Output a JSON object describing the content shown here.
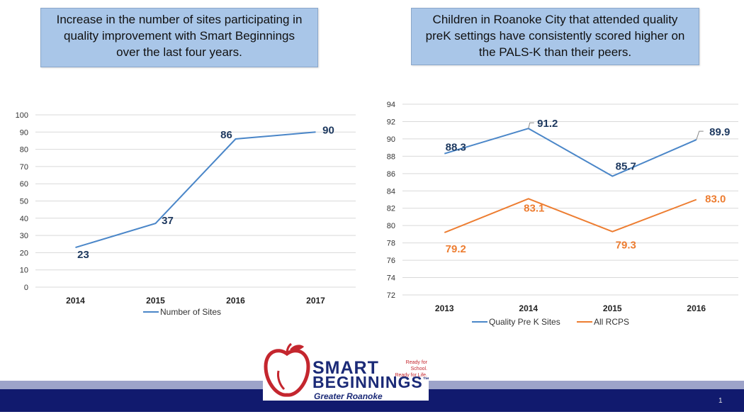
{
  "callouts": {
    "left": [
      "Increase in the number of sites participating in",
      "quality improvement with Smart Beginnings",
      "over the last four years."
    ],
    "right": [
      "Children in Roanoke City that attended quality",
      "preK settings have consistently scored higher on",
      "the PALS-K than their peers."
    ]
  },
  "chart_data": [
    {
      "type": "line",
      "title": "",
      "categories": [
        "2014",
        "2015",
        "2016",
        "2017"
      ],
      "series": [
        {
          "name": "Number of Sites",
          "values": [
            23,
            37,
            86,
            90
          ],
          "labels": [
            "23",
            "37",
            "86",
            "90"
          ],
          "color": "#4a86c8",
          "label_color": "#1f3a60"
        }
      ],
      "ylim": [
        0,
        100
      ],
      "yticks": [
        0,
        10,
        20,
        30,
        40,
        50,
        60,
        70,
        80,
        90,
        100
      ],
      "ytick_labels": [
        "0",
        "10",
        "20",
        "30",
        "40",
        "50",
        "60",
        "70",
        "80",
        "90",
        "100"
      ],
      "xlabel": "",
      "ylabel": "",
      "legend": "bottom"
    },
    {
      "type": "line",
      "title": "",
      "categories": [
        "2013",
        "2014",
        "2015",
        "2016"
      ],
      "series": [
        {
          "name": "Quality Pre K Sites",
          "values": [
            88.3,
            91.2,
            85.7,
            89.9
          ],
          "labels": [
            "88.3",
            "91.2",
            "85.7",
            "89.9"
          ],
          "color": "#4a86c8",
          "label_color": "#1f3a60"
        },
        {
          "name": "All RCPS",
          "values": [
            79.2,
            83.1,
            79.3,
            83.0
          ],
          "labels": [
            "79.2",
            "83.1",
            "79.3",
            "83.0"
          ],
          "color": "#ed7d31",
          "label_color": "#ed7d31"
        }
      ],
      "ylim": [
        72,
        94
      ],
      "yticks": [
        72,
        74,
        76,
        78,
        80,
        82,
        84,
        86,
        88,
        90,
        92,
        94
      ],
      "ytick_labels": [
        "72",
        "74",
        "76",
        "78",
        "80",
        "82",
        "84",
        "86",
        "88",
        "90",
        "92",
        "94"
      ],
      "xlabel": "",
      "ylabel": "",
      "legend": "bottom"
    }
  ],
  "logo": {
    "word1": "SMART",
    "word2": "BEGINNINGS",
    "trademark": "™",
    "tagline1": "Ready for School.",
    "tagline2": "Ready for Life.",
    "region": "Greater Roanoke",
    "apple_color": "#c4262e",
    "text_color": "#1b2a77"
  },
  "footer": {
    "page_number": "1"
  }
}
